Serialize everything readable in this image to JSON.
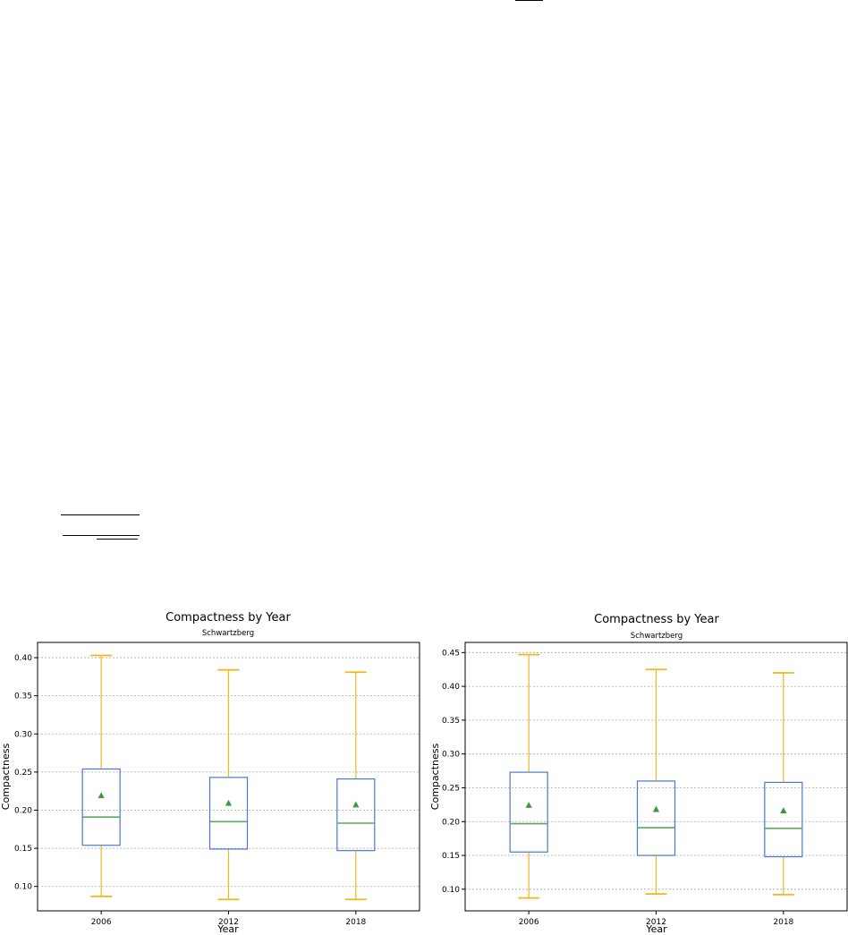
{
  "colors": {
    "box": "#4a7ac7",
    "median": "#5aab5a",
    "mean_marker": "#3a9a3a",
    "whisker": "#f1b81c",
    "grid": "#a7a7a7",
    "axes": "#000000",
    "background": "#ffffff"
  },
  "charts": [
    {
      "title": "Compactness by Year",
      "subtitle": "Schwartzberg",
      "xlabel": "Year",
      "ylabel": "Compactness",
      "ytick_labels": [
        "0.10",
        "0.15",
        "0.20",
        "0.25",
        "0.30",
        "0.35",
        "0.40"
      ],
      "xtick_labels": [
        "2006",
        "2012",
        "2018"
      ]
    },
    {
      "title": "Compactness by Year",
      "subtitle": "Schwartzberg",
      "xlabel": "Year",
      "ylabel": "Compactness",
      "ytick_labels": [
        "0.10",
        "0.15",
        "0.20",
        "0.25",
        "0.30",
        "0.35",
        "0.40",
        "0.45"
      ],
      "xtick_labels": [
        "2006",
        "2012",
        "2018"
      ]
    }
  ],
  "chart_data": [
    {
      "type": "box",
      "title": "Compactness by Year",
      "subtitle": "Schwartzberg",
      "xlabel": "Year",
      "ylabel": "Compactness",
      "categories": [
        "2006",
        "2012",
        "2018"
      ],
      "boxes": [
        {
          "whisker_low": 0.087,
          "q1": 0.154,
          "median": 0.191,
          "q3": 0.254,
          "whisker_high": 0.403,
          "mean": 0.219
        },
        {
          "whisker_low": 0.083,
          "q1": 0.149,
          "median": 0.185,
          "q3": 0.243,
          "whisker_high": 0.384,
          "mean": 0.209
        },
        {
          "whisker_low": 0.083,
          "q1": 0.147,
          "median": 0.183,
          "q3": 0.241,
          "whisker_high": 0.381,
          "mean": 0.207
        }
      ],
      "yticks": [
        0.1,
        0.15,
        0.2,
        0.25,
        0.3,
        0.35,
        0.4
      ],
      "ylim": [
        0.068,
        0.42
      ],
      "grid": "horizontal dashed",
      "legend": "none"
    },
    {
      "type": "box",
      "title": "Compactness by Year",
      "subtitle": "Schwartzberg",
      "xlabel": "Year",
      "ylabel": "Compactness",
      "categories": [
        "2006",
        "2012",
        "2018"
      ],
      "boxes": [
        {
          "whisker_low": 0.087,
          "q1": 0.155,
          "median": 0.197,
          "q3": 0.273,
          "whisker_high": 0.447,
          "mean": 0.224
        },
        {
          "whisker_low": 0.093,
          "q1": 0.15,
          "median": 0.191,
          "q3": 0.26,
          "whisker_high": 0.425,
          "mean": 0.218
        },
        {
          "whisker_low": 0.092,
          "q1": 0.148,
          "median": 0.19,
          "q3": 0.258,
          "whisker_high": 0.42,
          "mean": 0.216
        }
      ],
      "yticks": [
        0.1,
        0.15,
        0.2,
        0.25,
        0.3,
        0.35,
        0.4,
        0.45
      ],
      "ylim": [
        0.068,
        0.465
      ],
      "grid": "horizontal dashed",
      "legend": "none"
    }
  ]
}
